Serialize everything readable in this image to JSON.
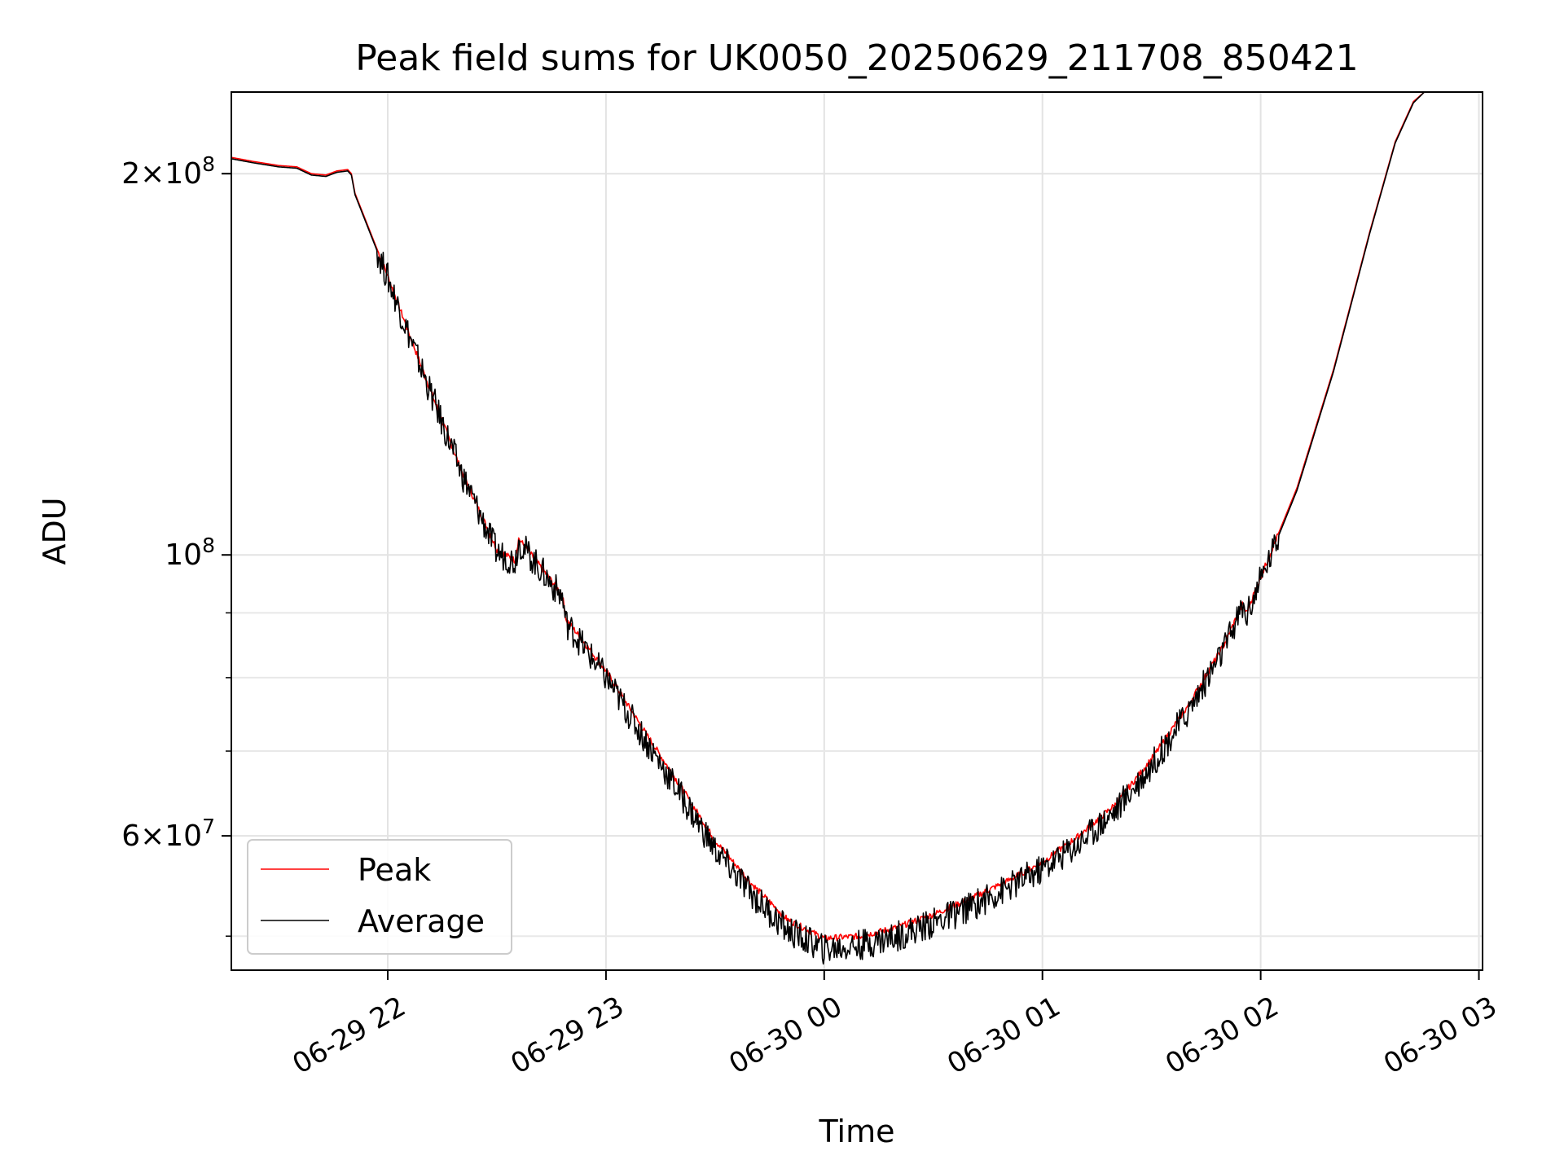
{
  "chart_data": {
    "type": "line",
    "title": "Peak field sums for UK0050_20250629_211708_850421",
    "xlabel": "Time",
    "ylabel": "ADU",
    "y_scale": "log",
    "ylim": [
      47000000,
      232000000
    ],
    "xlim": [
      "2025-06-29 21:17",
      "2025-06-30 03:01"
    ],
    "grid": true,
    "legend": {
      "placement": "lower-left",
      "entries": [
        "Peak",
        "Average"
      ]
    },
    "x_ticks": [
      {
        "value": "2025-06-29 22:00",
        "label": "06-29 22"
      },
      {
        "value": "2025-06-29 23:00",
        "label": "06-29 23"
      },
      {
        "value": "2025-06-30 00:00",
        "label": "06-30 00"
      },
      {
        "value": "2025-06-30 01:00",
        "label": "06-30 01"
      },
      {
        "value": "2025-06-30 02:00",
        "label": "06-30 02"
      },
      {
        "value": "2025-06-30 03:00",
        "label": "06-30 03"
      }
    ],
    "y_major_ticks": [
      {
        "value": 60000000,
        "mantissa": "6",
        "exponent": "7"
      },
      {
        "value": 100000000,
        "mantissa": "",
        "exponent": "8"
      },
      {
        "value": 200000000,
        "mantissa": "2",
        "exponent": "8"
      }
    ],
    "y_minor_ticks": [
      50000000,
      70000000,
      80000000,
      90000000
    ],
    "series": [
      {
        "name": "Peak",
        "color": "#ff0000",
        "noise": 0.0025,
        "points": [
          [
            "2025-06-29 21:17",
            206000000
          ],
          [
            "2025-06-29 21:23",
            204500000
          ],
          [
            "2025-06-29 21:30",
            203000000
          ],
          [
            "2025-06-29 21:35",
            202500000
          ],
          [
            "2025-06-29 21:39",
            200000000
          ],
          [
            "2025-06-29 21:43",
            199500000
          ],
          [
            "2025-06-29 21:46",
            201000000
          ],
          [
            "2025-06-29 21:49",
            201500000
          ],
          [
            "2025-06-29 21:50",
            200000000
          ],
          [
            "2025-06-29 21:51",
            193000000
          ],
          [
            "2025-06-29 22:00",
            166000000
          ],
          [
            "2025-06-29 22:10",
            139000000
          ],
          [
            "2025-06-29 22:20",
            117000000
          ],
          [
            "2025-06-29 22:28",
            104000000
          ],
          [
            "2025-06-29 22:30",
            101000000
          ],
          [
            "2025-06-29 22:35",
            99000000
          ],
          [
            "2025-06-29 22:36",
            103000000
          ],
          [
            "2025-06-29 22:48",
            93000000
          ],
          [
            "2025-06-29 22:49",
            89000000
          ],
          [
            "2025-06-29 23:00",
            81000000
          ],
          [
            "2025-06-29 23:10",
            73000000
          ],
          [
            "2025-06-29 23:20",
            66000000
          ],
          [
            "2025-06-29 23:30",
            59500000
          ],
          [
            "2025-06-29 23:40",
            55000000
          ],
          [
            "2025-06-29 23:50",
            51500000
          ],
          [
            "2025-06-30 00:00",
            49800000
          ],
          [
            "2025-06-30 00:10",
            50000000
          ],
          [
            "2025-06-30 00:20",
            50800000
          ],
          [
            "2025-06-30 00:30",
            52000000
          ],
          [
            "2025-06-30 00:40",
            53500000
          ],
          [
            "2025-06-30 00:50",
            55200000
          ],
          [
            "2025-06-30 01:00",
            57200000
          ],
          [
            "2025-06-30 01:10",
            60000000
          ],
          [
            "2025-06-30 01:20",
            63500000
          ],
          [
            "2025-06-30 01:30",
            69000000
          ],
          [
            "2025-06-30 01:40",
            76000000
          ],
          [
            "2025-06-30 01:50",
            85000000
          ],
          [
            "2025-06-30 01:55",
            91500000
          ],
          [
            "2025-06-30 01:56",
            90000000
          ],
          [
            "2025-06-30 02:00",
            96000000
          ],
          [
            "2025-06-30 02:10",
            113000000
          ],
          [
            "2025-06-30 02:20",
            140000000
          ],
          [
            "2025-06-30 02:30",
            180000000
          ],
          [
            "2025-06-30 02:37",
            212000000
          ],
          [
            "2025-06-30 02:42",
            228000000
          ],
          [
            "2025-06-30 02:45",
            232000000
          ]
        ]
      },
      {
        "name": "Average",
        "color": "#000000",
        "noise": 0.012,
        "points": [
          [
            "2025-06-29 21:17",
            205500000
          ],
          [
            "2025-06-29 21:23",
            204000000
          ],
          [
            "2025-06-29 21:30",
            202500000
          ],
          [
            "2025-06-29 21:35",
            202000000
          ],
          [
            "2025-06-29 21:39",
            199500000
          ],
          [
            "2025-06-29 21:43",
            199000000
          ],
          [
            "2025-06-29 21:46",
            200500000
          ],
          [
            "2025-06-29 21:49",
            201000000
          ],
          [
            "2025-06-29 21:50",
            199500000
          ],
          [
            "2025-06-29 21:51",
            192500000
          ],
          [
            "2025-06-29 22:00",
            165500000
          ],
          [
            "2025-06-29 22:10",
            138500000
          ],
          [
            "2025-06-29 22:20",
            116500000
          ],
          [
            "2025-06-29 22:28",
            103500000
          ],
          [
            "2025-06-29 22:30",
            100500000
          ],
          [
            "2025-06-29 22:35",
            98800000
          ],
          [
            "2025-06-29 22:36",
            102500000
          ],
          [
            "2025-06-29 22:48",
            92500000
          ],
          [
            "2025-06-29 22:49",
            88500000
          ],
          [
            "2025-06-29 23:00",
            80000000
          ],
          [
            "2025-06-29 23:10",
            72000000
          ],
          [
            "2025-06-29 23:20",
            65000000
          ],
          [
            "2025-06-29 23:30",
            58500000
          ],
          [
            "2025-06-29 23:40",
            54000000
          ],
          [
            "2025-06-29 23:50",
            50500000
          ],
          [
            "2025-06-30 00:00",
            48800000
          ],
          [
            "2025-06-30 00:10",
            49200000
          ],
          [
            "2025-06-30 00:20",
            50000000
          ],
          [
            "2025-06-30 00:30",
            51200000
          ],
          [
            "2025-06-30 00:40",
            52700000
          ],
          [
            "2025-06-30 00:50",
            54500000
          ],
          [
            "2025-06-30 01:00",
            56500000
          ],
          [
            "2025-06-30 01:10",
            59200000
          ],
          [
            "2025-06-30 01:20",
            62800000
          ],
          [
            "2025-06-30 01:30",
            68200000
          ],
          [
            "2025-06-30 01:40",
            75200000
          ],
          [
            "2025-06-30 01:50",
            84300000
          ],
          [
            "2025-06-30 01:55",
            91000000
          ],
          [
            "2025-06-30 01:56",
            89500000
          ],
          [
            "2025-06-30 02:00",
            95500000
          ],
          [
            "2025-06-30 02:10",
            112500000
          ],
          [
            "2025-06-30 02:20",
            139500000
          ],
          [
            "2025-06-30 02:30",
            179500000
          ],
          [
            "2025-06-30 02:37",
            211500000
          ],
          [
            "2025-06-30 02:42",
            227500000
          ],
          [
            "2025-06-30 02:45",
            232000000
          ]
        ]
      }
    ]
  }
}
